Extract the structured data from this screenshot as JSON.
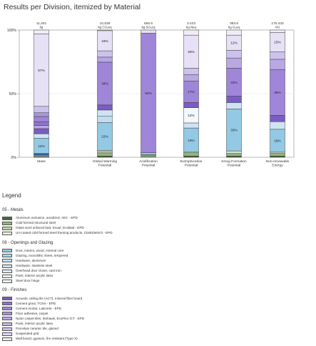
{
  "title": "Results per Division, itemized by Material",
  "legend_title": "Legend",
  "chart_data": {
    "type": "bar",
    "stacked": true,
    "normalized": true,
    "title": "Results per Division, itemized by Material",
    "y_ticks": [
      "0%",
      "50%",
      "100%"
    ],
    "ylim": [
      0,
      100
    ],
    "categories": [
      {
        "label": [
          "Mass"
        ],
        "total": "11,401",
        "unit": "kg"
      },
      {
        "label": [
          "Global Warming",
          "Potential"
        ],
        "total": "10,539",
        "unit": "kg CO₂eq"
      },
      {
        "label": [
          "Acidification",
          "Potential"
        ],
        "total": "555.6",
        "unit": "kg SO₂eq"
      },
      {
        "label": [
          "Eutrophication",
          "Potential"
        ],
        "total": "3.423",
        "unit": "kg Neq"
      },
      {
        "label": [
          "Smog Formation",
          "Potential"
        ],
        "total": "383.6",
        "unit": "kg O₃eq"
      },
      {
        "label": [
          "Non-renewable",
          "Energy"
        ],
        "total": "170,433",
        "unit": "MJ"
      }
    ],
    "segments": [
      [
        {
          "color": "#7f9f6e",
          "value": 0.4
        },
        {
          "color": "#f2f5ee",
          "value": 0.6
        },
        {
          "color": "#d7e6c8",
          "value": 0.5
        },
        {
          "color": "#2b5ea0",
          "value": 1.5
        },
        {
          "color": "#93c9e4",
          "value": 12,
          "label": "12%"
        },
        {
          "color": "#cfe4f2",
          "value": 3.5
        },
        {
          "color": "#7b5cc4",
          "value": 4
        },
        {
          "color": "#b9a8e2",
          "value": 2.5
        },
        {
          "color": "#8e74d0",
          "value": 3
        },
        {
          "color": "#9f86d8",
          "value": 4
        },
        {
          "color": "#a895dc",
          "value": 3
        },
        {
          "color": "#cdc2ec",
          "value": 5
        },
        {
          "color": "#e6e1f4",
          "value": 57,
          "label": "57%"
        },
        {
          "color": "#f0edf8",
          "value": 3
        }
      ],
      [
        {
          "color": "#486a37",
          "value": 1
        },
        {
          "color": "#94b284",
          "value": 2
        },
        {
          "color": "#d7e6c8",
          "value": 1
        },
        {
          "color": "#bcd3a6",
          "value": 1.5
        },
        {
          "color": "#93c9e4",
          "value": 22,
          "label": "22%"
        },
        {
          "color": "#bfdff0",
          "value": 5
        },
        {
          "color": "#cfe4f2",
          "value": 5
        },
        {
          "color": "#7b5cc4",
          "value": 4
        },
        {
          "color": "#9f86d8",
          "value": 34,
          "label": "34%"
        },
        {
          "color": "#b6a6e2",
          "value": 4
        },
        {
          "color": "#cdc2ec",
          "value": 5
        },
        {
          "color": "#e6e1f4",
          "value": 16,
          "label": "16%"
        },
        {
          "color": "#f0edf8",
          "value": 0.5
        }
      ],
      [
        {
          "color": "#7f9f6e",
          "value": 2
        },
        {
          "color": "#93c9e4",
          "value": 1.5
        },
        {
          "color": "#9f86d8",
          "value": 94,
          "label": "94%"
        },
        {
          "color": "#e6e1f4",
          "value": 2.5
        }
      ],
      [
        {
          "color": "#486a37",
          "value": 1
        },
        {
          "color": "#94b284",
          "value": 3
        },
        {
          "color": "#93c9e4",
          "value": 19,
          "label": "19%"
        },
        {
          "color": "#cfe4f2",
          "value": 4
        },
        {
          "color": "#f2f8fc",
          "value": 12,
          "label": "12%"
        },
        {
          "color": "#7b5cc4",
          "value": 4
        },
        {
          "color": "#9f86d8",
          "value": 17,
          "label": "17%"
        },
        {
          "color": "#b9a8e2",
          "value": 5
        },
        {
          "color": "#cdc2ec",
          "value": 5
        },
        {
          "color": "#e6e1f4",
          "value": 26,
          "label": "26%"
        },
        {
          "color": "#f0edf8",
          "value": 4
        }
      ],
      [
        {
          "color": "#486a37",
          "value": 1
        },
        {
          "color": "#94b284",
          "value": 2
        },
        {
          "color": "#d7e6c8",
          "value": 2
        },
        {
          "color": "#93c9e4",
          "value": 33,
          "label": "33%"
        },
        {
          "color": "#cfe4f2",
          "value": 5
        },
        {
          "color": "#7b5cc4",
          "value": 5
        },
        {
          "color": "#9f86d8",
          "value": 22,
          "label": "22%"
        },
        {
          "color": "#b9a8e2",
          "value": 8
        },
        {
          "color": "#cdc2ec",
          "value": 6
        },
        {
          "color": "#e6e1f4",
          "value": 12,
          "label": "12%"
        },
        {
          "color": "#f0edf8",
          "value": 4
        }
      ],
      [
        {
          "color": "#486a37",
          "value": 1
        },
        {
          "color": "#94b284",
          "value": 2
        },
        {
          "color": "#d7e6c8",
          "value": 1
        },
        {
          "color": "#93c9e4",
          "value": 18,
          "label": "18%"
        },
        {
          "color": "#cfe4f2",
          "value": 6
        },
        {
          "color": "#7b5cc4",
          "value": 5
        },
        {
          "color": "#9f86d8",
          "value": 36,
          "label": "36%"
        },
        {
          "color": "#b9a8e2",
          "value": 8
        },
        {
          "color": "#cdc2ec",
          "value": 6
        },
        {
          "color": "#e6e1f4",
          "value": 15,
          "label": "15%"
        },
        {
          "color": "#f0edf8",
          "value": 2
        }
      ]
    ]
  },
  "legend": [
    {
      "title": "05 - Metals",
      "items": [
        {
          "label": "Aluminum extrusion, anodized, AEC - EPD",
          "color": "#486a37"
        },
        {
          "label": "Cold formed structural steel",
          "color": "#94b284"
        },
        {
          "label": "Glass wool unfaced batt, Knauf, EcoBatt - EPD",
          "color": "#bcd3a6"
        },
        {
          "label": "Un-coated cold-formed steel framing products, ClarkDietrich - EPD",
          "color": "#e7efe0"
        }
      ]
    },
    {
      "title": "08 - Openings and Glazing",
      "items": [
        {
          "label": "Door, interior, wood, mineral core",
          "color": "#93c9e4"
        },
        {
          "label": "Glazing, monolithic sheet, tempered",
          "color": "#a8d4ea"
        },
        {
          "label": "Hardware, aluminum",
          "color": "#bfdff0"
        },
        {
          "label": "Hardware, stainless steel",
          "color": "#cfe4f2"
        },
        {
          "label": "Overhead door closer, cast iron",
          "color": "#dcecf6"
        },
        {
          "label": "Paint, interior acrylic latex",
          "color": "#e9f3fa"
        },
        {
          "label": "Steel door hinge",
          "color": "#f5f9fc"
        }
      ]
    },
    {
      "title": "09 - Finishes",
      "items": [
        {
          "label": "Acoustic ceiling tile (ACT), mineral fiber board",
          "color": "#7b5cc4"
        },
        {
          "label": "Cement grout, TCNA - EPD",
          "color": "#8e74d0"
        },
        {
          "label": "Cement mortar, Laticrete - EPD",
          "color": "#9f86d8"
        },
        {
          "label": "Floor adhesive, carpet",
          "color": "#a895dc"
        },
        {
          "label": "Nylon carpet tiles, Mohawk, EcoFlex ICT - EPD",
          "color": "#b9a8e2"
        },
        {
          "label": "Paint, interior acrylic latex",
          "color": "#c4b6e6"
        },
        {
          "label": "Porcelain ceramic tile, glazed",
          "color": "#cdc2ec"
        },
        {
          "label": "Suspended grid",
          "color": "#e0d9f2"
        },
        {
          "label": "Wall board, gypsum, fire resistant (Type X)",
          "color": "#ede9f7"
        }
      ]
    }
  ]
}
